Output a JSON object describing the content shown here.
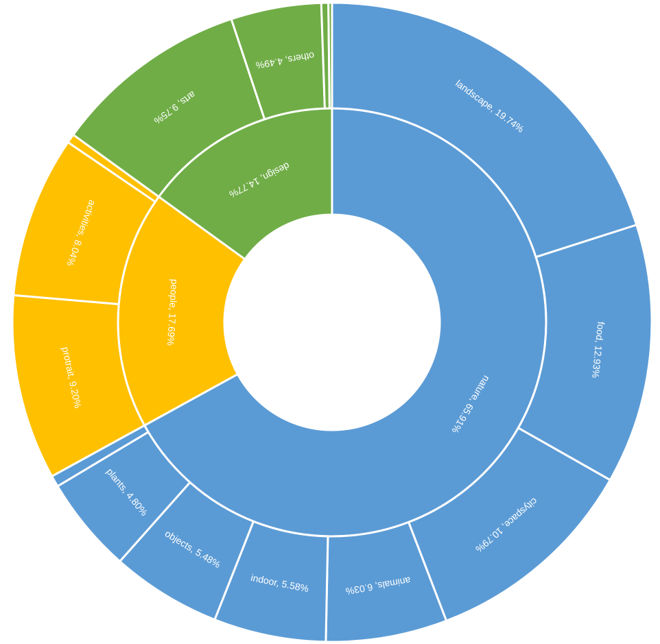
{
  "chart_data": {
    "type": "sunburst",
    "title": "",
    "colors": {
      "nature": "#5b9bd5",
      "people": "#ffc000",
      "design": "#70ad47",
      "separator": "#ffffff",
      "label": "#ffffff"
    },
    "inner_ring": [
      {
        "name": "nature",
        "value": 65.91,
        "label": "nature, 65.91%",
        "color": "#5b9bd5"
      },
      {
        "name": "people",
        "value": 17.69,
        "label": "people, 17.69%",
        "color": "#ffc000"
      },
      {
        "name": "design",
        "value": 14.77,
        "label": "design, 14.77%",
        "color": "#70ad47"
      }
    ],
    "outer_ring": [
      {
        "name": "landscape",
        "parent": "nature",
        "value": 19.74,
        "label": "landscape, 19.74%"
      },
      {
        "name": "food",
        "parent": "nature",
        "value": 12.93,
        "label": "food, 12.93%"
      },
      {
        "name": "cityspace",
        "parent": "nature",
        "value": 10.79,
        "label": "cityspace, 10.79%"
      },
      {
        "name": "animals",
        "parent": "nature",
        "value": 6.03,
        "label": "animals, 6.03%"
      },
      {
        "name": "indoor",
        "parent": "nature",
        "value": 5.58,
        "label": "indoor, 5.58%"
      },
      {
        "name": "objects",
        "parent": "nature",
        "value": 5.48,
        "label": "objects, 5.48%"
      },
      {
        "name": "plants",
        "parent": "nature",
        "value": 4.8,
        "label": "plants, 4.80%"
      },
      {
        "name": "",
        "parent": "nature",
        "value": 0.56,
        "label": ""
      },
      {
        "name": "protrait",
        "parent": "people",
        "value": 9.2,
        "label": "protrait, 9.20%"
      },
      {
        "name": "activities",
        "parent": "people",
        "value": 8.04,
        "label": "activities, 8.04%"
      },
      {
        "name": "",
        "parent": "people",
        "value": 0.45,
        "label": ""
      },
      {
        "name": "arts",
        "parent": "design",
        "value": 9.75,
        "label": "arts, 9.75%"
      },
      {
        "name": "others",
        "parent": "design",
        "value": 4.49,
        "label": "others, 4.49%"
      },
      {
        "name": "",
        "parent": "design",
        "value": 0.35,
        "label": ""
      },
      {
        "name": "",
        "parent": "design",
        "value": 0.18,
        "label": ""
      }
    ]
  }
}
